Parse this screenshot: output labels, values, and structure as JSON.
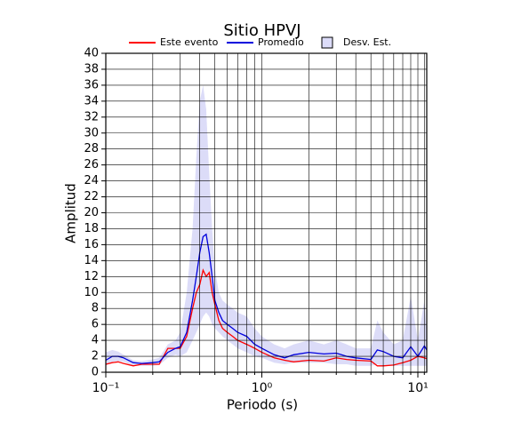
{
  "chart_data": {
    "type": "line",
    "title": "Sitio HPVJ",
    "x_label": "Periodo (s)",
    "y_label": "Amplitud",
    "x_scale": "log",
    "grid": true,
    "legend": "top",
    "xlim": [
      0.1,
      11.4
    ],
    "ylim": [
      0,
      40
    ],
    "xticks": [
      {
        "value": 0.1,
        "label": "10⁻¹"
      },
      {
        "value": 1,
        "label": "10⁰"
      },
      {
        "value": 10,
        "label": "10¹"
      }
    ],
    "xgrid": [
      0.2,
      0.3,
      0.4,
      0.5,
      0.6,
      0.7,
      0.8,
      0.9,
      2,
      3,
      4,
      5,
      6,
      7,
      8,
      9,
      11
    ],
    "yticks": [
      0,
      2,
      4,
      6,
      8,
      10,
      12,
      14,
      16,
      18,
      20,
      22,
      24,
      26,
      28,
      30,
      32,
      34,
      36,
      38,
      40
    ],
    "x": [
      0.1,
      0.11,
      0.12,
      0.13,
      0.15,
      0.17,
      0.2,
      0.22,
      0.25,
      0.28,
      0.3,
      0.33,
      0.36,
      0.38,
      0.4,
      0.42,
      0.44,
      0.46,
      0.48,
      0.5,
      0.53,
      0.56,
      0.6,
      0.65,
      0.7,
      0.8,
      0.9,
      1.0,
      1.2,
      1.4,
      1.6,
      2,
      2.5,
      3,
      3.5,
      4,
      5,
      5.5,
      6,
      7,
      8,
      9,
      10,
      11,
      11.4
    ],
    "series": [
      {
        "name": "Este evento",
        "color": "#ff0000",
        "values": [
          1.0,
          1.2,
          1.3,
          1.1,
          0.8,
          1.0,
          1.0,
          1.0,
          3.0,
          3.0,
          3.0,
          4.5,
          8,
          10,
          11,
          12.8,
          12,
          12.5,
          10,
          8.5,
          6.5,
          5.5,
          5.0,
          4.5,
          4.0,
          3.5,
          3.0,
          2.5,
          1.8,
          1.5,
          1.3,
          1.5,
          1.4,
          1.8,
          1.6,
          1.5,
          1.4,
          0.8,
          0.8,
          0.9,
          1.2,
          1.5,
          2.0,
          1.8,
          1.7
        ]
      },
      {
        "name": "Promedio",
        "color": "#0000dd",
        "values": [
          1.5,
          2.0,
          2.0,
          1.8,
          1.2,
          1.1,
          1.2,
          1.3,
          2.5,
          3.0,
          3.2,
          5,
          9,
          12,
          15,
          17,
          17.3,
          15,
          12,
          9,
          7.5,
          6.5,
          6,
          5.5,
          5.0,
          4.5,
          3.5,
          3.0,
          2.2,
          1.8,
          2.2,
          2.5,
          2.3,
          2.4,
          2.0,
          1.8,
          1.6,
          2.8,
          2.6,
          2.0,
          1.8,
          3.2,
          2.0,
          3.3,
          2.8
        ]
      },
      {
        "name": "Desv. Est.",
        "color": "#dcdcf8",
        "high": [
          2.5,
          2.8,
          2.6,
          2.2,
          1.5,
          1.4,
          1.6,
          1.8,
          3.5,
          4,
          5,
          10,
          18,
          27,
          34,
          36,
          33,
          25,
          18,
          13,
          10,
          9,
          8.5,
          8,
          7.5,
          7,
          5.5,
          4.5,
          3.5,
          3,
          3.5,
          4.0,
          3.5,
          4.0,
          3.5,
          3.0,
          3.0,
          6.5,
          5,
          3.5,
          4,
          9.5,
          4,
          9,
          5
        ],
        "low": [
          0.8,
          1.3,
          1.4,
          1.3,
          0.8,
          0.8,
          0.8,
          0.9,
          1.8,
          2.2,
          2.0,
          2.5,
          4,
          5,
          6,
          7,
          7.5,
          7,
          6,
          5.5,
          5,
          4.5,
          4,
          3.5,
          3.0,
          2.5,
          2,
          1.8,
          1.2,
          1.0,
          1.2,
          1.2,
          1.2,
          1.0,
          1.0,
          0.8,
          0.8,
          1.0,
          0.8,
          0.8,
          0.8,
          0.8,
          0.8,
          0.8,
          0.8
        ]
      }
    ]
  }
}
